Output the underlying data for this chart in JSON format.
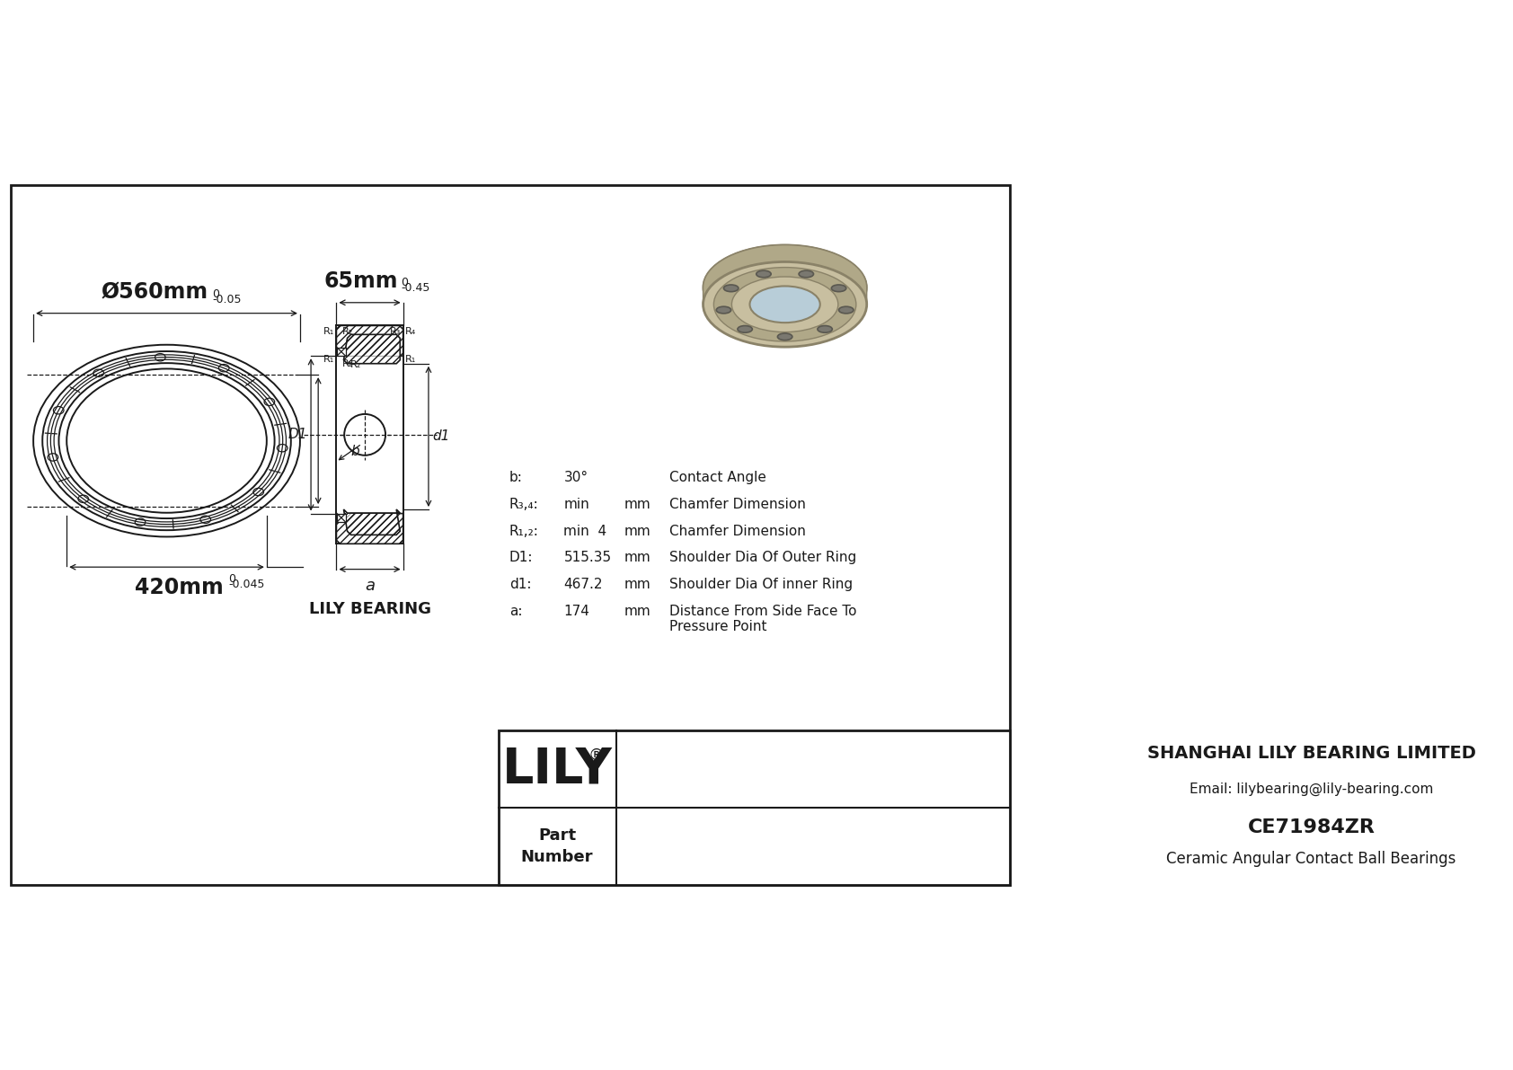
{
  "bg_color": "#ffffff",
  "line_color": "#1a1a1a",
  "outer_diameter_label": "Ø560mm",
  "outer_diameter_tolerance_top": "0",
  "outer_diameter_tolerance_bot": "-0.05",
  "inner_diameter_label": "420mm",
  "inner_diameter_tolerance_top": "0",
  "inner_diameter_tolerance_bot": "-0.045",
  "width_label": "65mm",
  "width_tolerance_top": "0",
  "width_tolerance_bot": "-0.45",
  "specs": [
    {
      "symbol": "b:",
      "value": "30°",
      "unit": "",
      "desc": "Contact Angle"
    },
    {
      "symbol": "R₃,₄:",
      "value": "min",
      "unit": "mm",
      "desc": "Chamfer Dimension"
    },
    {
      "symbol": "R₁,₂:",
      "value": "min  4",
      "unit": "mm",
      "desc": "Chamfer Dimension"
    },
    {
      "symbol": "D1:",
      "value": "515.35",
      "unit": "mm",
      "desc": "Shoulder Dia Of Outer Ring"
    },
    {
      "symbol": "d1:",
      "value": "467.2",
      "unit": "mm",
      "desc": "Shoulder Dia Of inner Ring"
    },
    {
      "symbol": "a:",
      "value": "174",
      "unit": "mm",
      "desc": "Distance From Side Face To\nPressure Point"
    }
  ],
  "company": "LILY",
  "company_reg": "®",
  "company_full": "SHANGHAI LILY BEARING LIMITED",
  "company_email": "Email: lilybearing@lily-bearing.com",
  "part_number": "CE71984ZR",
  "part_desc": "Ceramic Angular Contact Ball Bearings",
  "lily_bearing_label": "LILY BEARING",
  "D1_label": "D1",
  "d1_label": "d1",
  "a_label": "a"
}
